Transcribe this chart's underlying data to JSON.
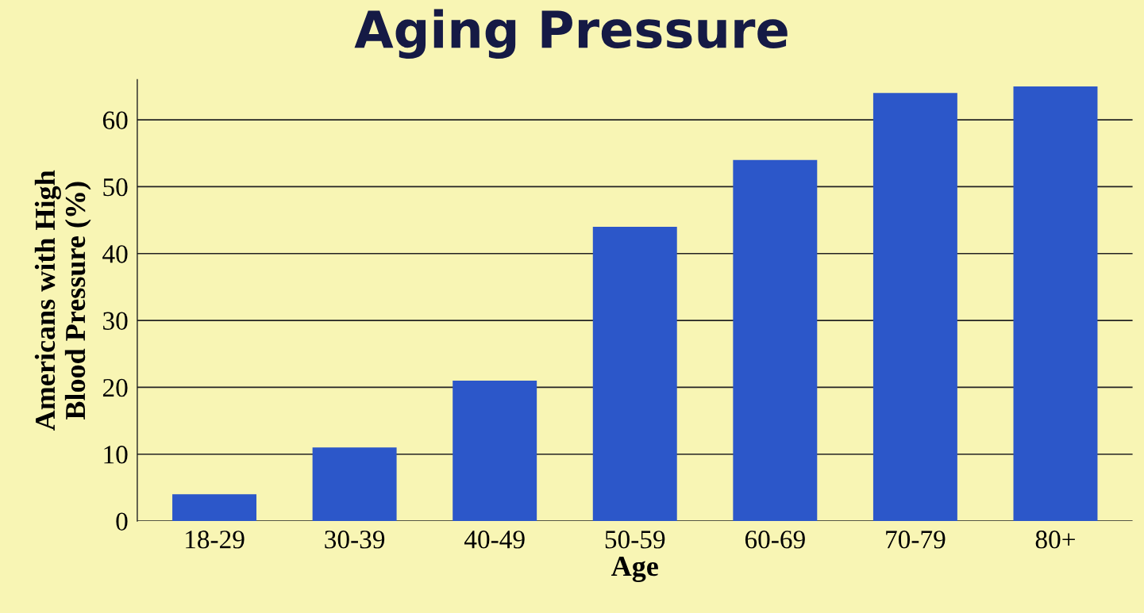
{
  "chart_data": {
    "type": "bar",
    "title": "Aging Pressure",
    "xlabel": "Age",
    "ylabel": "Americans with High\nBlood Pressure (%)",
    "categories": [
      "18-29",
      "30-39",
      "40-49",
      "50-59",
      "60-69",
      "70-79",
      "80+"
    ],
    "values": [
      4,
      11,
      21,
      44,
      54,
      64,
      65
    ],
    "color": "#2c57c9",
    "ylim": [
      0,
      66
    ],
    "yticks": [
      0,
      10,
      20,
      30,
      40,
      50,
      60
    ],
    "grid": "y"
  }
}
